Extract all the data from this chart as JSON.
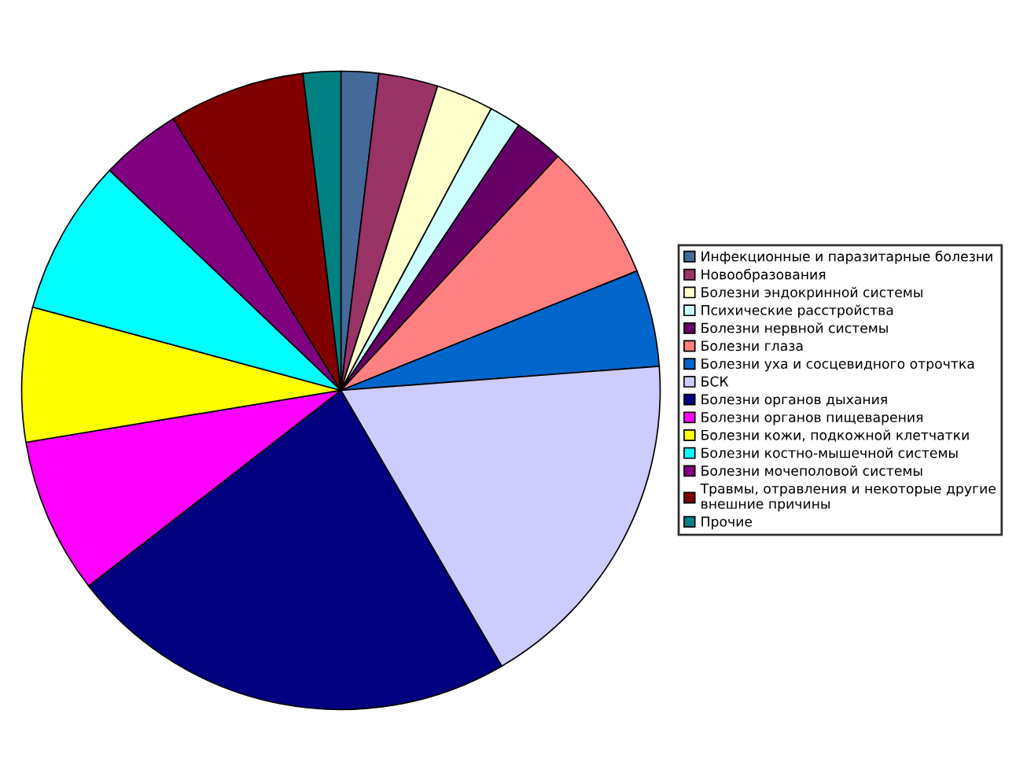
{
  "chart_data": {
    "type": "pie",
    "categories": [
      "Инфекционные и паразитарные болезни",
      "Новообразования",
      "Болезни эндокринной системы",
      "Психические расстройства",
      "Болезни нервной системы",
      "Болезни глаза",
      "Болезни уха и сосцевидного отрочтка",
      "БСК",
      "Болезни органов дыхания",
      "Болезни органов пищеварения",
      "Болезни кожи, подкожной клетчатки",
      "Болезни костно-мышечной системы",
      "Болезни мочеполовой системы",
      "Травмы, отравления и некоторые другие внешние причины",
      "Прочие"
    ],
    "values": [
      1.9,
      3.0,
      2.9,
      1.6,
      2.5,
      7.0,
      4.9,
      17.8,
      22.9,
      7.9,
      6.8,
      7.9,
      4.1,
      6.9,
      1.9
    ],
    "colors": [
      "#446a99",
      "#993366",
      "#ffffcc",
      "#ccffff",
      "#660066",
      "#ff8080",
      "#0066cc",
      "#ccccff",
      "#000080",
      "#ff00ff",
      "#ffff00",
      "#00ffff",
      "#800080",
      "#800000",
      "#008080"
    ],
    "legend": "right"
  }
}
